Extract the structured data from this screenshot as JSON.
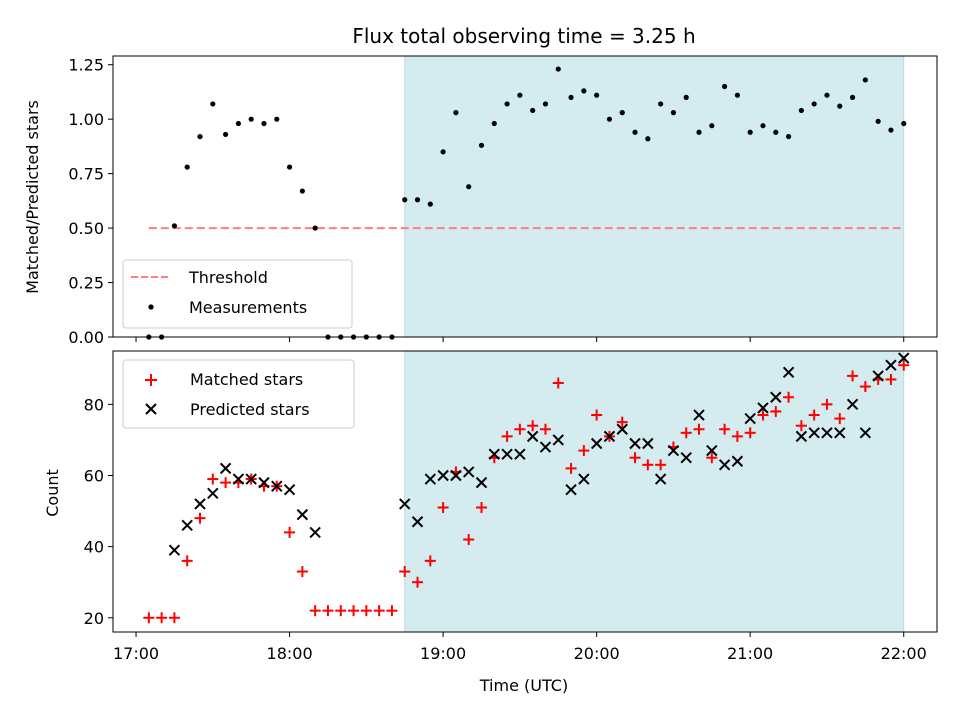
{
  "chart_data": [
    {
      "type": "scatter",
      "title": "Flux total observing time = 3.25 h",
      "xlabel": "",
      "ylabel": "Matched/Predicted stars",
      "xlim": [
        "16:51",
        "22:13"
      ],
      "ylim": [
        0,
        1.29
      ],
      "yticks": [
        "0.00",
        "0.25",
        "0.50",
        "0.75",
        "1.00",
        "1.25"
      ],
      "shaded_span": {
        "from": "18:45",
        "to": "22:00",
        "color": "#d4ebf0"
      },
      "legend": {
        "placement": "lower-left",
        "entries": [
          "Threshold",
          "Measurements"
        ]
      },
      "series": [
        {
          "name": "Threshold",
          "style": "dashed-line",
          "color": "#ff7f7f",
          "x": [
            "17:05",
            "22:00"
          ],
          "y": [
            0.5,
            0.5
          ]
        },
        {
          "name": "Measurements",
          "style": "dots",
          "color": "#000000",
          "x": [
            "17:05",
            "17:10",
            "17:15",
            "17:20",
            "17:25",
            "17:30",
            "17:35",
            "17:40",
            "17:45",
            "17:50",
            "17:55",
            "18:00",
            "18:05",
            "18:10",
            "18:15",
            "18:20",
            "18:25",
            "18:30",
            "18:35",
            "18:40",
            "18:45",
            "18:50",
            "18:55",
            "19:00",
            "19:05",
            "19:10",
            "19:15",
            "19:20",
            "19:25",
            "19:30",
            "19:35",
            "19:40",
            "19:45",
            "19:50",
            "19:55",
            "20:00",
            "20:05",
            "20:10",
            "20:15",
            "20:20",
            "20:25",
            "20:30",
            "20:35",
            "20:40",
            "20:45",
            "20:50",
            "20:55",
            "21:00",
            "21:05",
            "21:10",
            "21:15",
            "21:20",
            "21:25",
            "21:30",
            "21:35",
            "21:40",
            "21:45",
            "21:50",
            "21:55",
            "22:00"
          ],
          "y": [
            0.0,
            0.0,
            0.51,
            0.78,
            0.92,
            1.07,
            0.93,
            0.98,
            1.0,
            0.98,
            1.0,
            0.78,
            0.67,
            0.5,
            0.0,
            0.0,
            0.0,
            0.0,
            0.0,
            0.0,
            0.63,
            0.63,
            0.61,
            0.85,
            1.03,
            0.69,
            0.88,
            0.98,
            1.07,
            1.11,
            1.04,
            1.07,
            1.23,
            1.1,
            1.13,
            1.11,
            1.0,
            1.03,
            0.94,
            0.91,
            1.07,
            1.03,
            1.1,
            0.94,
            0.97,
            1.15,
            1.11,
            0.94,
            0.97,
            0.94,
            0.92,
            1.04,
            1.07,
            1.11,
            1.06,
            1.1,
            1.18,
            0.99,
            0.95,
            0.98
          ]
        }
      ]
    },
    {
      "type": "scatter",
      "title": "",
      "xlabel": "Time (UTC)",
      "ylabel": "Count",
      "xlim": [
        "16:51",
        "22:13"
      ],
      "ylim": [
        16,
        95
      ],
      "yticks": [
        "20",
        "40",
        "60",
        "80"
      ],
      "xticks": [
        "17:00",
        "18:00",
        "19:00",
        "20:00",
        "21:00",
        "22:00"
      ],
      "shaded_span": {
        "from": "18:45",
        "to": "22:00",
        "color": "#d4ebf0"
      },
      "legend": {
        "placement": "top-left",
        "entries": [
          "Matched stars",
          "Predicted stars"
        ]
      },
      "series": [
        {
          "name": "Matched stars",
          "style": "plus",
          "color": "#ff0000",
          "x": [
            "17:05",
            "17:10",
            "17:15",
            "17:20",
            "17:25",
            "17:30",
            "17:35",
            "17:40",
            "17:45",
            "17:50",
            "17:55",
            "18:00",
            "18:05",
            "18:10",
            "18:15",
            "18:20",
            "18:25",
            "18:30",
            "18:35",
            "18:40",
            "18:45",
            "18:50",
            "18:55",
            "19:00",
            "19:05",
            "19:10",
            "19:15",
            "19:20",
            "19:25",
            "19:30",
            "19:35",
            "19:40",
            "19:45",
            "19:50",
            "19:55",
            "20:00",
            "20:05",
            "20:10",
            "20:15",
            "20:20",
            "20:25",
            "20:30",
            "20:35",
            "20:40",
            "20:45",
            "20:50",
            "20:55",
            "21:00",
            "21:05",
            "21:10",
            "21:15",
            "21:20",
            "21:25",
            "21:30",
            "21:35",
            "21:40",
            "21:45",
            "21:50",
            "21:55",
            "22:00"
          ],
          "y": [
            20,
            20,
            20,
            36,
            48,
            59,
            58,
            58,
            59,
            57,
            57,
            44,
            33,
            22,
            22,
            22,
            22,
            22,
            22,
            22,
            33,
            30,
            36,
            51,
            61,
            42,
            51,
            65,
            71,
            73,
            74,
            73,
            86,
            62,
            67,
            77,
            71,
            75,
            65,
            63,
            63,
            68,
            72,
            73,
            65,
            73,
            71,
            72,
            77,
            78,
            82,
            74,
            77,
            80,
            76,
            88,
            85,
            87,
            87,
            91
          ]
        },
        {
          "name": "Predicted stars",
          "style": "x",
          "color": "#000000",
          "x": [
            "17:15",
            "17:20",
            "17:25",
            "17:30",
            "17:35",
            "17:40",
            "17:45",
            "17:50",
            "17:55",
            "18:00",
            "18:05",
            "18:10",
            "18:45",
            "18:50",
            "18:55",
            "19:00",
            "19:05",
            "19:10",
            "19:15",
            "19:20",
            "19:25",
            "19:30",
            "19:35",
            "19:40",
            "19:45",
            "19:50",
            "19:55",
            "20:00",
            "20:05",
            "20:10",
            "20:15",
            "20:20",
            "20:25",
            "20:30",
            "20:35",
            "20:40",
            "20:45",
            "20:50",
            "20:55",
            "21:00",
            "21:05",
            "21:10",
            "21:15",
            "21:20",
            "21:25",
            "21:30",
            "21:35",
            "21:40",
            "21:45",
            "21:50",
            "21:55",
            "22:00"
          ],
          "y": [
            39,
            46,
            52,
            55,
            62,
            59,
            59,
            58,
            57,
            56,
            49,
            44,
            52,
            47,
            59,
            60,
            60,
            61,
            58,
            66,
            66,
            66,
            71,
            68,
            70,
            56,
            59,
            69,
            71,
            73,
            69,
            69,
            59,
            67,
            65,
            77,
            67,
            63,
            64,
            76,
            79,
            82,
            89,
            71,
            72,
            72,
            72,
            80,
            72,
            88,
            91,
            93
          ]
        }
      ]
    }
  ]
}
